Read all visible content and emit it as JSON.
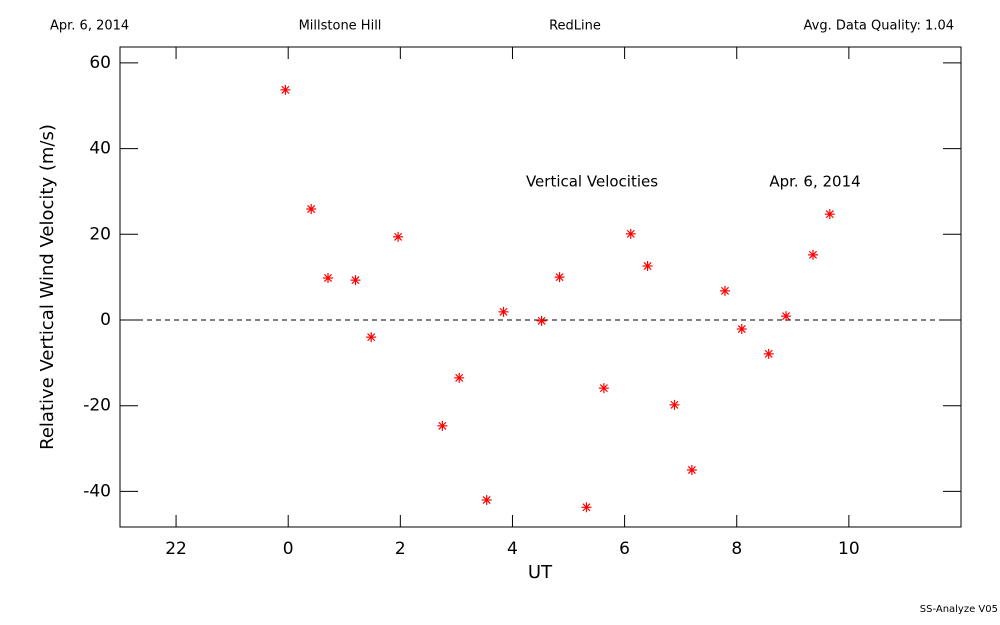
{
  "chart_data": {
    "type": "scatter",
    "header": [
      "Apr. 6, 2014",
      "Millstone Hill",
      "RedLine",
      "Avg. Data Quality: 1.04"
    ],
    "x_label": "UT",
    "y_label": "Relative Vertical Wind Velocity (m/s)",
    "annotations": [
      "Vertical Velocities",
      "Apr. 6, 2014"
    ],
    "footer": "SS-Analyze V05",
    "xlim": [
      -3,
      12
    ],
    "ylim": [
      -48.3,
      63.7
    ],
    "xticks": [
      {
        "value": -2,
        "label": "22"
      },
      0,
      2,
      4,
      6,
      8,
      10
    ],
    "yticks": [
      -40,
      -20,
      0,
      20,
      40,
      60
    ],
    "zero_line": true,
    "series": [
      {
        "name": "Vertical Velocities",
        "color": "#ff0000",
        "x": [
          -0.05,
          0.41,
          0.71,
          1.2,
          1.48,
          1.96,
          2.75,
          3.05,
          3.54,
          3.84,
          4.52,
          4.84,
          5.32,
          5.63,
          6.11,
          6.41,
          6.89,
          7.2,
          7.79,
          8.09,
          8.57,
          8.88,
          9.36,
          9.66
        ],
        "values": [
          53.7,
          25.9,
          9.8,
          9.3,
          -4.0,
          19.4,
          -24.7,
          -13.5,
          -42.0,
          1.9,
          -0.2,
          10.0,
          -43.7,
          -15.9,
          20.1,
          12.6,
          -19.8,
          -35.0,
          6.8,
          -2.1,
          -7.9,
          0.9,
          15.2,
          24.7
        ]
      }
    ]
  }
}
